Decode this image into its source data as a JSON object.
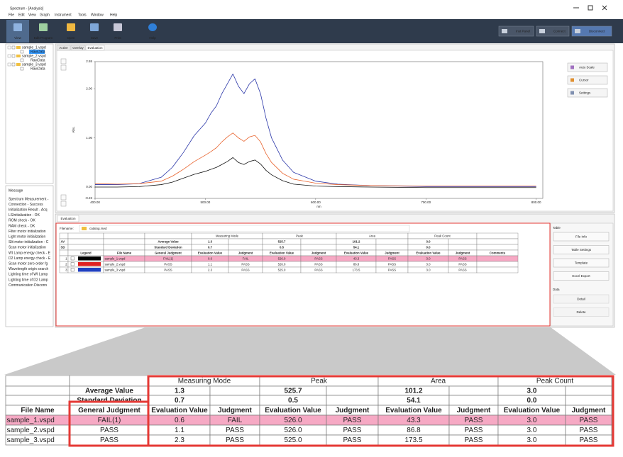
{
  "window": {
    "title": "Spectrum - [Analysis]"
  },
  "menu": [
    "File",
    "Edit",
    "View",
    "Graph",
    "Instrument",
    "Tools",
    "Window",
    "Help"
  ],
  "toolbar": [
    "View",
    "Edit Program",
    "Open",
    "Save",
    "Print",
    "Help"
  ],
  "toolbar_right": [
    "Inst Panel",
    "Connect",
    "Disconnect"
  ],
  "tree": [
    {
      "label": "sample_1.vspd",
      "child": "RawData"
    },
    {
      "label": "sample_2.vspd",
      "child": "RawData"
    },
    {
      "label": "sample_3.vspd",
      "child": "RawData"
    }
  ],
  "messages": {
    "title": "Message",
    "lines": [
      "Spectrum Measurement -",
      "Connection - Success",
      "Initialization Result - Acq",
      "LSInitialization - OK",
      "ROM check - OK",
      "RAM check - OK",
      "Filter motor initialization",
      "Light motor initialization",
      "Slit motor initialization - C",
      "Scan motor initialization",
      "WI Lamp energy check - E",
      "D2 Lamp energy check - E",
      "Scan motor zero order fg",
      "Wavelength origin search",
      "Lighting time of WI Lamp",
      "Lighting time of D2 Lamp",
      "Communication Disconn"
    ]
  },
  "tabs": [
    "Active",
    "Overlay",
    "Evaluation"
  ],
  "chart_data": {
    "type": "line",
    "y_label": "Abs.",
    "x_label": "nm",
    "x": [
      400,
      420,
      440,
      460,
      470,
      480,
      490,
      500,
      505,
      510,
      515,
      520,
      525,
      530,
      535,
      540,
      545,
      550,
      555,
      560,
      570,
      580,
      600,
      620,
      650,
      700,
      750,
      800
    ],
    "xlim": [
      400,
      806
    ],
    "ylim": [
      -0.23,
      2.55
    ],
    "xticks": [
      {
        "value": 400,
        "label": "400.00"
      },
      {
        "value": 500,
        "label": "500.00"
      },
      {
        "value": 600,
        "label": "600.00"
      },
      {
        "value": 700,
        "label": "700.00"
      },
      {
        "value": 800,
        "label": "800.00"
      }
    ],
    "yticks": [
      {
        "value": -0.23,
        "label": "-0.23"
      },
      {
        "value": 0,
        "label": "0.00"
      },
      {
        "value": 1,
        "label": "1.00"
      },
      {
        "value": 2,
        "label": "2.00"
      },
      {
        "value": 2.55,
        "label": "2.55"
      }
    ],
    "series": [
      {
        "color": "#2a36a8",
        "values": [
          0.05,
          0.05,
          0.07,
          0.2,
          0.4,
          0.7,
          1.05,
          1.3,
          1.5,
          1.65,
          1.9,
          2.1,
          2.3,
          2.05,
          1.9,
          2.1,
          2.2,
          1.9,
          1.4,
          1.0,
          0.55,
          0.3,
          0.12,
          0.06,
          0.03,
          0.01,
          0.01,
          0.01
        ]
      },
      {
        "color": "#e8622c",
        "values": [
          0.07,
          0.06,
          0.07,
          0.12,
          0.22,
          0.36,
          0.52,
          0.65,
          0.72,
          0.8,
          0.92,
          1.02,
          1.1,
          1.0,
          0.93,
          1.02,
          1.05,
          0.92,
          0.68,
          0.5,
          0.28,
          0.16,
          0.08,
          0.05,
          0.03,
          0.02,
          0.02,
          0.02
        ]
      },
      {
        "color": "#111111",
        "values": [
          0.0,
          0.0,
          0.01,
          0.05,
          0.1,
          0.18,
          0.26,
          0.32,
          0.36,
          0.4,
          0.46,
          0.52,
          0.6,
          0.5,
          0.46,
          0.52,
          0.55,
          0.47,
          0.34,
          0.25,
          0.13,
          0.06,
          0.02,
          0.01,
          0.0,
          -0.01,
          -0.01,
          -0.01
        ]
      }
    ]
  },
  "graph_buttons": [
    "Auto Scale",
    "Cursor",
    "Settings"
  ],
  "evaluation": {
    "tab": "Evaluation",
    "filename_label": "Filename:",
    "filename": "catalog.rsed"
  },
  "table": {
    "groups": [
      "Measuring Mode",
      "Peak",
      "Area",
      "Peak Count"
    ],
    "stats": [
      {
        "short": "AV",
        "label": "Average Value",
        "cells": [
          "1.3",
          "525.7",
          "101.2",
          "3.0"
        ]
      },
      {
        "short": "SD",
        "label": "Standard Deviation",
        "cells": [
          "0.7",
          "0.5",
          "54.1",
          "0.0"
        ]
      }
    ],
    "headers": {
      "legend": "Legend",
      "file": "File Name",
      "general": "General Judgment",
      "eval": "Evaluation Value",
      "judgment": "Judgment",
      "comments": "Comments"
    },
    "rows": [
      {
        "no": 1,
        "color": "#000000",
        "file": "sample_1.vspd",
        "general": "FAIL(1)",
        "cells": [
          "0.6",
          "FAIL",
          "526.0",
          "PASS",
          "43.3",
          "PASS",
          "3.0",
          "PASS"
        ]
      },
      {
        "no": 2,
        "color": "#e02020",
        "file": "sample_2.vspd",
        "general": "PASS",
        "cells": [
          "1.1",
          "PASS",
          "526.0",
          "PASS",
          "86.8",
          "PASS",
          "3.0",
          "PASS"
        ]
      },
      {
        "no": 3,
        "color": "#2040c0",
        "file": "sample_3.vspd",
        "general": "PASS",
        "cells": [
          "2.3",
          "PASS",
          "525.0",
          "PASS",
          "173.5",
          "PASS",
          "3.0",
          "PASS"
        ]
      }
    ]
  },
  "side_panel": {
    "table_title": "Table",
    "table_buttons": [
      "File Info",
      "Table Settings",
      "Template",
      "Excel Export"
    ],
    "data_title": "Data",
    "data_buttons": [
      "Detail",
      "Delete"
    ]
  }
}
